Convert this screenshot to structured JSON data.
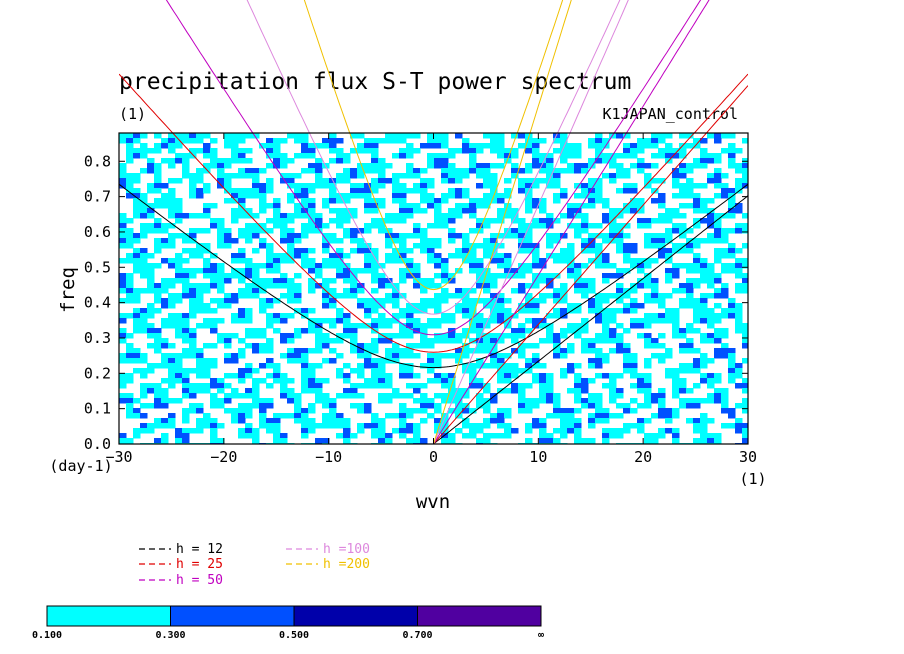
{
  "chart_data": {
    "type": "heatmap",
    "title": "precipitation flux S-T power spectrum",
    "units_label": "(1)",
    "run_label": "K1JAPAN_control",
    "xlabel": "wvn",
    "ylabel": "freq",
    "x_unit_label": "(1)",
    "y_unit_label": "(day-1)",
    "xlim": [
      -30,
      30
    ],
    "ylim": [
      0,
      0.88
    ],
    "xticks": [
      -30,
      -20,
      -10,
      0,
      10,
      20,
      30
    ],
    "xtick_labels": [
      "−30",
      "−20",
      "−10",
      "0",
      "10",
      "20",
      "30"
    ],
    "yticks": [
      0,
      0.1,
      0.2,
      0.3,
      0.4,
      0.5,
      0.6,
      0.7,
      0.8
    ],
    "ytick_labels": [
      "0.0",
      "0.1",
      "0.2",
      "0.3",
      "0.4",
      "0.5",
      "0.6",
      "0.7",
      "0.8"
    ],
    "contour_levels": [
      0.1,
      0.3,
      0.5,
      0.7
    ],
    "colorbar": {
      "labels": [
        "0.100",
        "0.300",
        "0.500",
        "0.700",
        "∞"
      ],
      "colors": [
        "#00ffff",
        "#0050ff",
        "#0000aa",
        "#5000a0"
      ]
    },
    "dispersion_curves": [
      {
        "label": "h = 12",
        "h": 12,
        "color": "#000000",
        "legend_color": "#000000"
      },
      {
        "label": "h = 25",
        "h": 25,
        "color": "#e00000",
        "legend_color": "#e00000"
      },
      {
        "label": "h = 50",
        "h": 50,
        "color": "#c000c0",
        "legend_color": "#c000c0"
      },
      {
        "label": "h =100",
        "h": 100,
        "color": "#dd88dd",
        "legend_color": "#dd88dd"
      },
      {
        "label": "h =200",
        "h": 200,
        "color": "#f0c000",
        "legend_color": "#f0c000"
      }
    ]
  }
}
